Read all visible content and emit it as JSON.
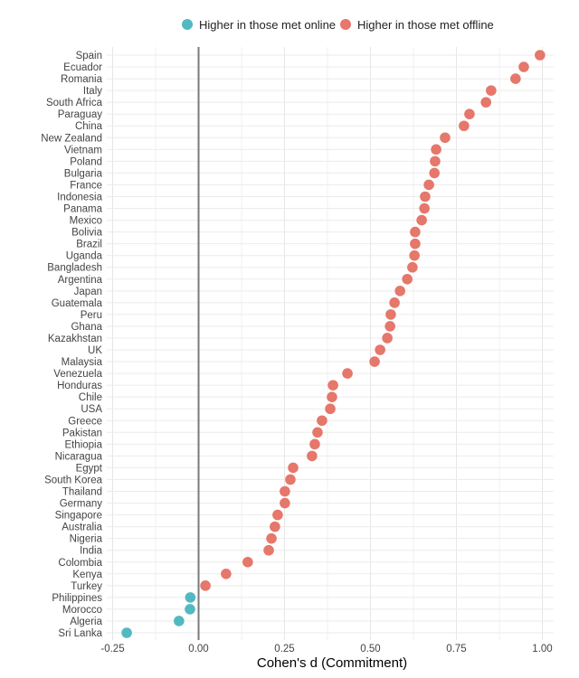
{
  "chart_data": {
    "type": "scatter",
    "title": "",
    "xlabel": "Cohen's d (Commitment)",
    "ylabel": "",
    "xlim": [
      -0.28,
      1.03
    ],
    "xticks": [
      -0.25,
      0.0,
      0.25,
      0.5,
      0.75,
      1.0
    ],
    "xtick_labels": [
      "-0.25",
      "0.00",
      "0.25",
      "0.50",
      "0.75",
      "1.00"
    ],
    "grid": true,
    "legend_position": "top",
    "reference_line": 0,
    "legend": [
      {
        "label": "Higher in those met online",
        "color": "#52b9c0"
      },
      {
        "label": "Higher in those met offline",
        "color": "#e5776b"
      }
    ],
    "categories": [
      "Spain",
      "Ecuador",
      "Romania",
      "Italy",
      "South Africa",
      "Paraguay",
      "China",
      "New Zealand",
      "Vietnam",
      "Poland",
      "Bulgaria",
      "France",
      "Indonesia",
      "Panama",
      "Mexico",
      "Bolivia",
      "Brazil",
      "Uganda",
      "Bangladesh",
      "Argentina",
      "Japan",
      "Guatemala",
      "Peru",
      "Ghana",
      "Kazakhstan",
      "UK",
      "Malaysia",
      "Venezuela",
      "Honduras",
      "Chile",
      "USA",
      "Greece",
      "Pakistan",
      "Ethiopia",
      "Nicaragua",
      "Egypt",
      "South Korea",
      "Thailand",
      "Germany",
      "Singapore",
      "Australia",
      "Nigeria",
      "India",
      "Colombia",
      "Kenya",
      "Turkey",
      "Philippines",
      "Morocco",
      "Algeria",
      "Sri Lanka"
    ],
    "values": [
      0.993,
      0.946,
      0.922,
      0.851,
      0.836,
      0.788,
      0.772,
      0.717,
      0.691,
      0.688,
      0.686,
      0.67,
      0.659,
      0.657,
      0.649,
      0.63,
      0.63,
      0.628,
      0.622,
      0.607,
      0.586,
      0.57,
      0.559,
      0.557,
      0.549,
      0.528,
      0.512,
      0.433,
      0.391,
      0.388,
      0.383,
      0.359,
      0.346,
      0.338,
      0.33,
      0.275,
      0.267,
      0.251,
      0.251,
      0.23,
      0.222,
      0.212,
      0.204,
      0.143,
      0.08,
      0.02,
      -0.024,
      -0.025,
      -0.057,
      -0.209
    ]
  }
}
